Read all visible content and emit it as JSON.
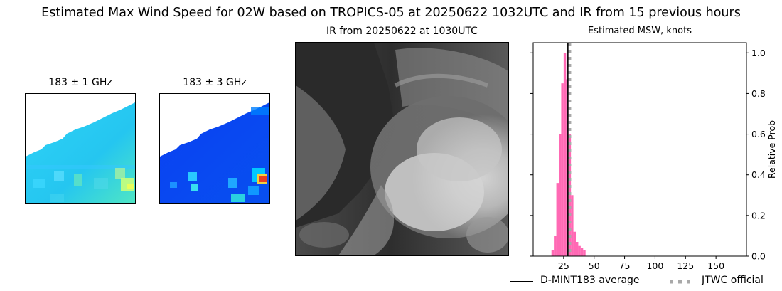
{
  "main_title": "Estimated Max Wind Speed for 02W based on TROPICS-05 at 20250622 1032UTC and IR from 15 previous hours",
  "panels": {
    "mw1_title": "183 ± 1 GHz",
    "mw3_title": "183 ± 3 GHz",
    "ir_title": "IR from 20250622 at 1030UTC",
    "hist_title": "Estimated MSW, knots"
  },
  "colors": {
    "histogram": "#ff69b4",
    "average_line": "#000000",
    "jtwc_line": "#a9a9a9"
  },
  "chart_data": {
    "type": "bar",
    "title": "Estimated MSW, knots",
    "xlabel": "",
    "ylabel": "Relative Prob",
    "xlim": [
      0,
      175
    ],
    "ylim": [
      0,
      1.05
    ],
    "x_ticks": [
      25,
      50,
      75,
      100,
      125,
      150
    ],
    "y_ticks": [
      0.0,
      0.2,
      0.4,
      0.6,
      0.8,
      1.0
    ],
    "y_tick_labels": [
      "0.0",
      "0.2",
      "0.4",
      "0.6",
      "0.8",
      "1.0"
    ],
    "y_axis_side": "right",
    "bin_width": 2,
    "bins": [
      {
        "x": 16,
        "value": 0.03
      },
      {
        "x": 18,
        "value": 0.1
      },
      {
        "x": 20,
        "value": 0.36
      },
      {
        "x": 22,
        "value": 0.6
      },
      {
        "x": 24,
        "value": 0.85
      },
      {
        "x": 26,
        "value": 1.0
      },
      {
        "x": 28,
        "value": 0.87
      },
      {
        "x": 30,
        "value": 0.6
      },
      {
        "x": 32,
        "value": 0.3
      },
      {
        "x": 34,
        "value": 0.12
      },
      {
        "x": 36,
        "value": 0.07
      },
      {
        "x": 38,
        "value": 0.05
      },
      {
        "x": 40,
        "value": 0.04
      },
      {
        "x": 42,
        "value": 0.03
      }
    ],
    "average": 28.5,
    "jtwc_official": 30,
    "legend": [
      {
        "label": "D-MINT183 average",
        "style": "solid"
      },
      {
        "label": "JTWC official",
        "style": "dotted"
      }
    ],
    "legend_placement": "bottom"
  }
}
